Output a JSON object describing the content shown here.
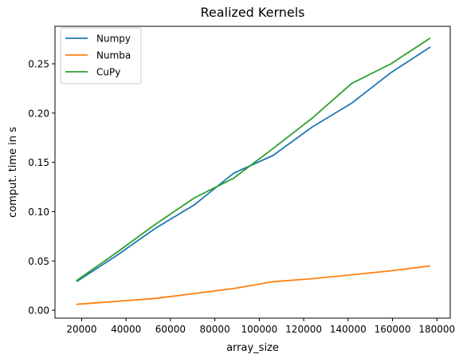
{
  "chart_data": {
    "type": "line",
    "title": "Realized Kernels",
    "xlabel": "array_size",
    "ylabel": "comput. time in s",
    "xlim": [
      8000,
      186000
    ],
    "ylim": [
      -0.008,
      0.288
    ],
    "xticks": [
      20000,
      40000,
      60000,
      80000,
      100000,
      120000,
      140000,
      160000,
      180000
    ],
    "yticks": [
      0.0,
      0.05,
      0.1,
      0.15,
      0.2,
      0.25
    ],
    "xtick_labels": [
      "20000",
      "40000",
      "60000",
      "80000",
      "100000",
      "120000",
      "140000",
      "160000",
      "180000"
    ],
    "ytick_labels": [
      "0.00",
      "0.05",
      "0.10",
      "0.15",
      "0.20",
      "0.25"
    ],
    "grid": false,
    "legend_position": "upper-left",
    "x": [
      17700,
      35400,
      53100,
      70800,
      88500,
      106200,
      123900,
      141600,
      159300,
      177000
    ],
    "series": [
      {
        "name": "Numpy",
        "color": "#1f77b4",
        "values": [
          0.029,
          0.055,
          0.083,
          0.107,
          0.139,
          0.157,
          0.186,
          0.21,
          0.241,
          0.267
        ]
      },
      {
        "name": "Numba",
        "color": "#ff7f0e",
        "values": [
          0.006,
          0.009,
          0.012,
          0.017,
          0.022,
          0.029,
          0.032,
          0.036,
          0.04,
          0.045
        ]
      },
      {
        "name": "CuPy",
        "color": "#2ca02c",
        "values": [
          0.03,
          0.058,
          0.087,
          0.114,
          0.134,
          0.164,
          0.195,
          0.23,
          0.25,
          0.276
        ]
      }
    ]
  }
}
